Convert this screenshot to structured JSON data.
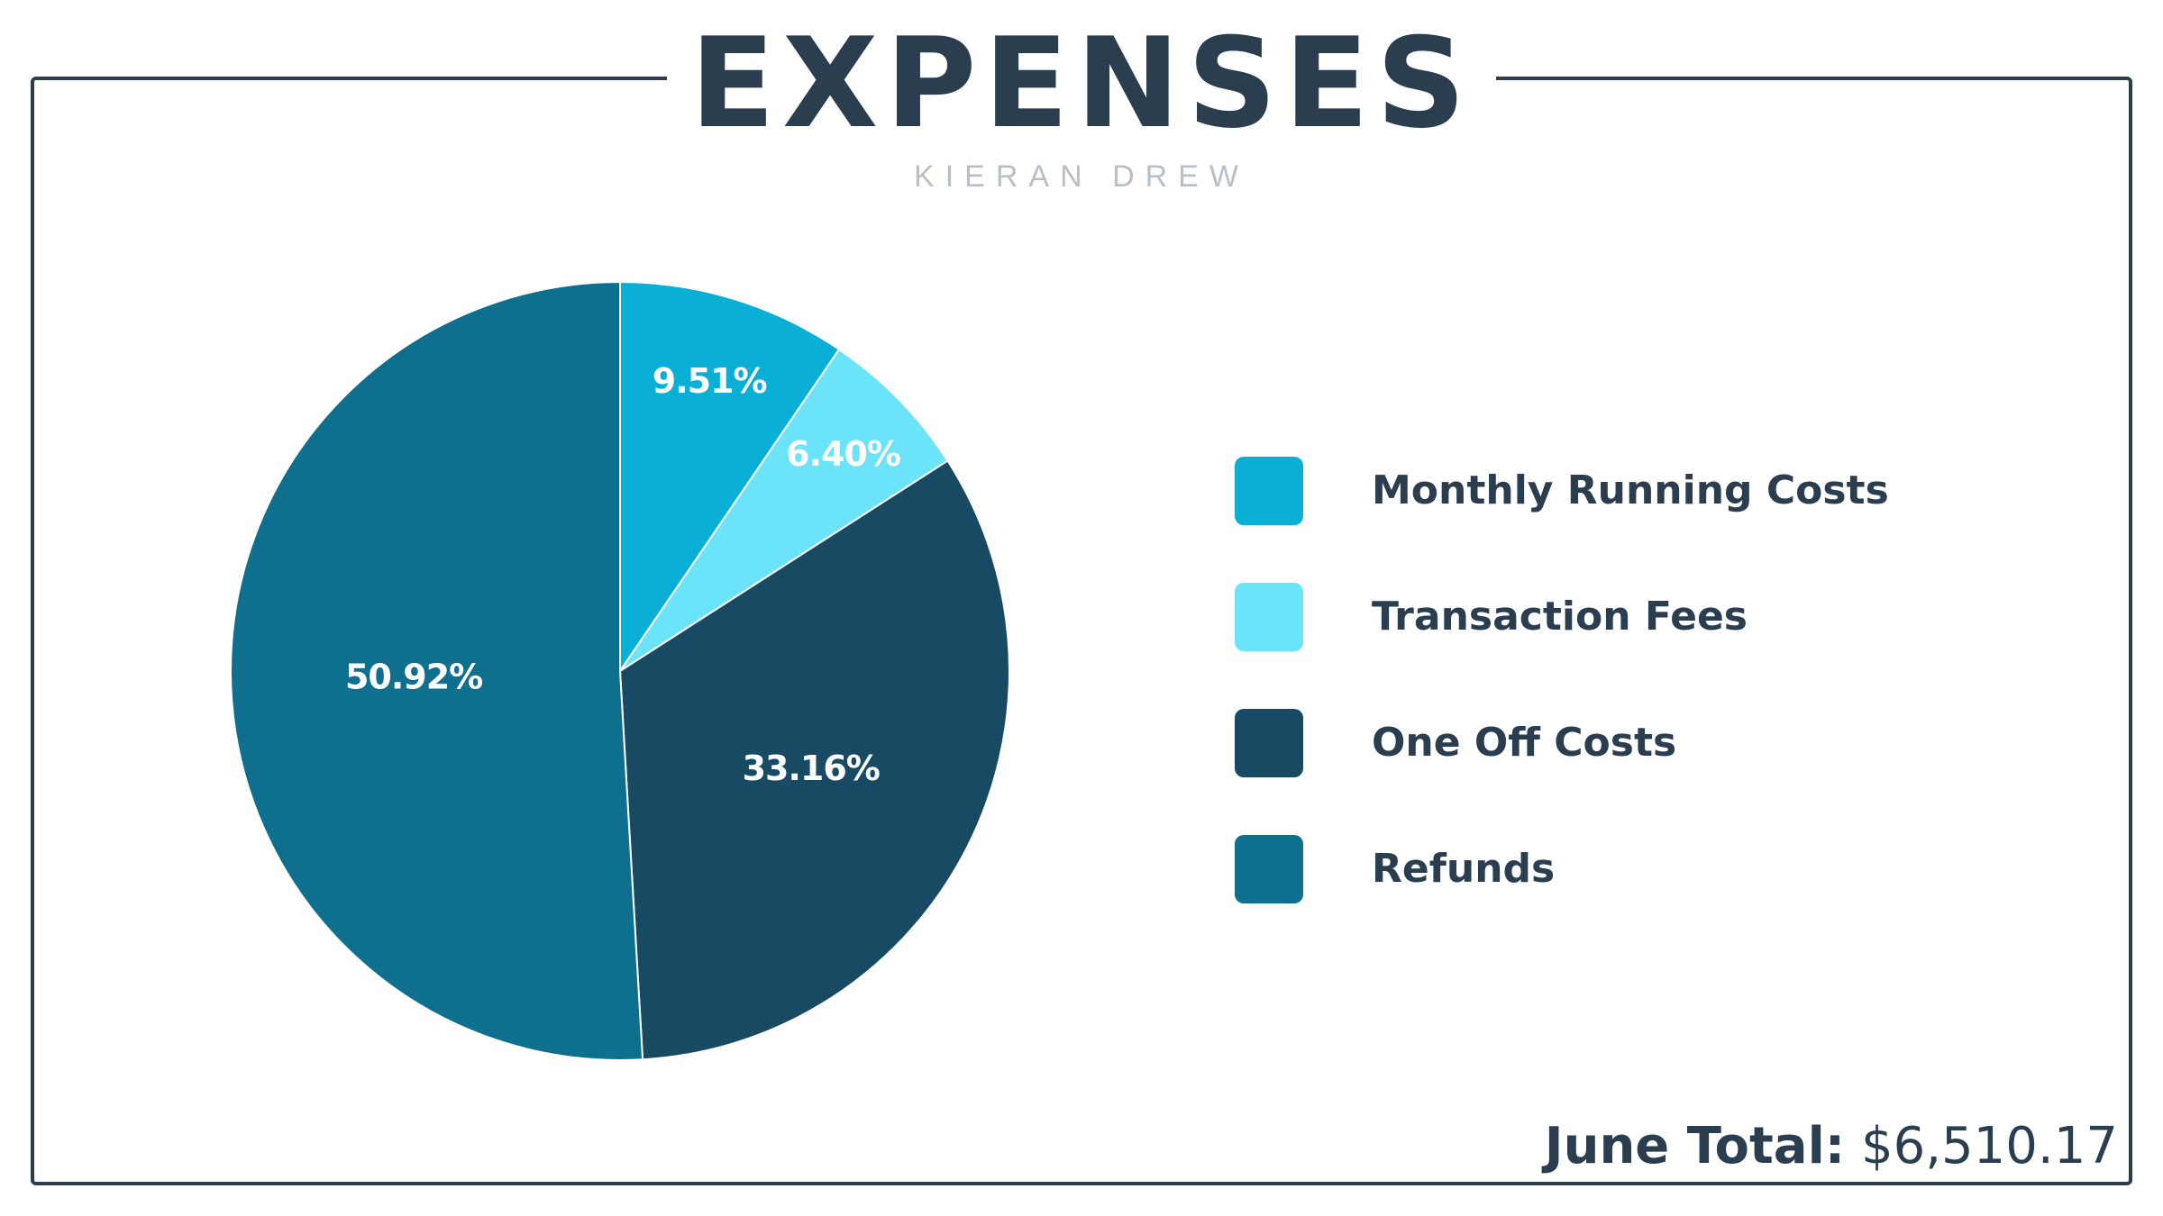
{
  "header": {
    "title": "EXPENSES",
    "subtitle": "KIERAN DREW"
  },
  "chart_data": {
    "type": "pie",
    "categories": [
      "Monthly Running Costs",
      "Transaction Fees",
      "One Off Costs",
      "Refunds"
    ],
    "values": [
      9.51,
      6.4,
      33.16,
      50.92
    ],
    "labels": [
      "9.51%",
      "6.40%",
      "33.16%",
      "50.92%"
    ],
    "colors": [
      "#0aafd6",
      "#6be3f9",
      "#184b63",
      "#0f6f8e"
    ],
    "legend_position": "right"
  },
  "legend": {
    "items": [
      {
        "label": "Monthly Running Costs",
        "color": "#0aafd6"
      },
      {
        "label": "Transaction Fees",
        "color": "#6be3f9"
      },
      {
        "label": "One Off Costs",
        "color": "#184b63"
      },
      {
        "label": "Refunds",
        "color": "#0f6f8e"
      }
    ]
  },
  "footer": {
    "total_label": "June Total:",
    "total_value": "$6,510.17"
  },
  "colors": {
    "text": "#2b3e50",
    "subtitle": "#b7bfc8",
    "border": "#2b3e50"
  }
}
